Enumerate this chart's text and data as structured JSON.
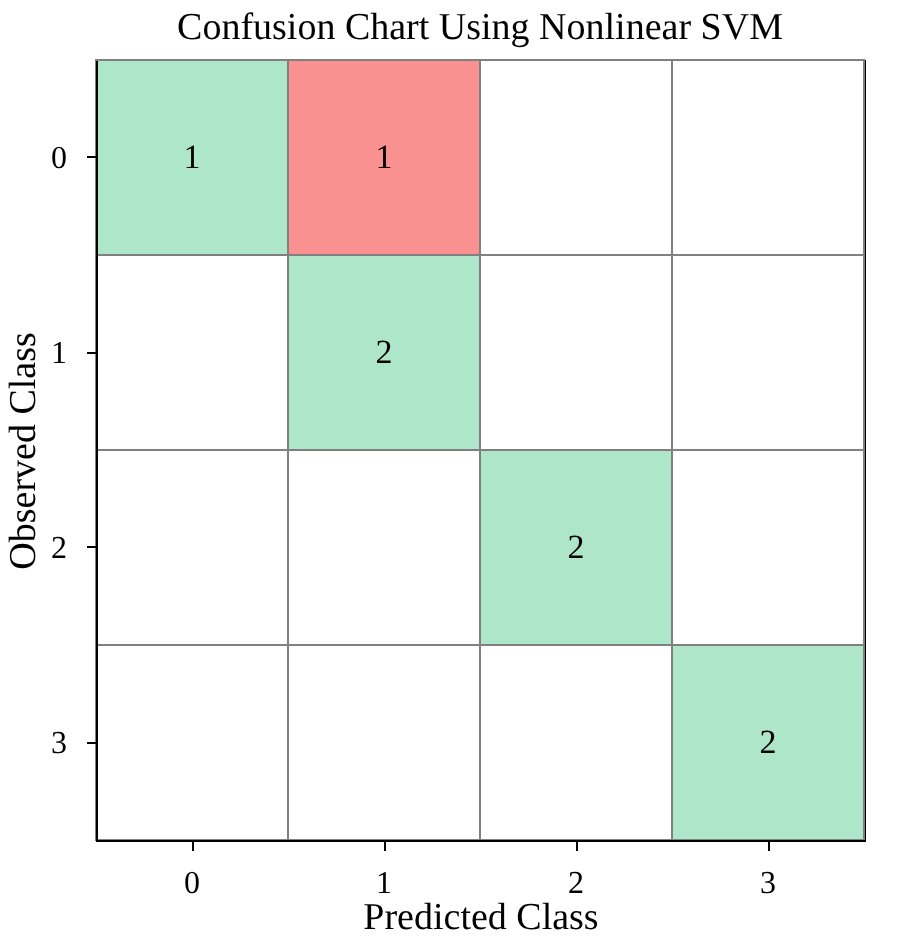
{
  "chart_data": {
    "type": "heatmap",
    "title": "Confusion Chart Using Nonlinear SVM",
    "xlabel": "Predicted Class",
    "ylabel": "Observed Class",
    "categories": [
      "0",
      "1",
      "2",
      "3"
    ],
    "y_categories": [
      "0",
      "1",
      "2",
      "3"
    ],
    "cells": [
      [
        1,
        1,
        null,
        null
      ],
      [
        null,
        2,
        null,
        null
      ],
      [
        null,
        null,
        2,
        null
      ],
      [
        null,
        null,
        null,
        2
      ]
    ],
    "colors": [
      [
        "#ade6c8",
        "#f99191",
        null,
        null
      ],
      [
        null,
        "#ade6c8",
        null,
        null
      ],
      [
        null,
        null,
        "#ade6c8",
        null
      ],
      [
        null,
        null,
        null,
        "#ade6c8"
      ]
    ],
    "data_labels": true
  }
}
